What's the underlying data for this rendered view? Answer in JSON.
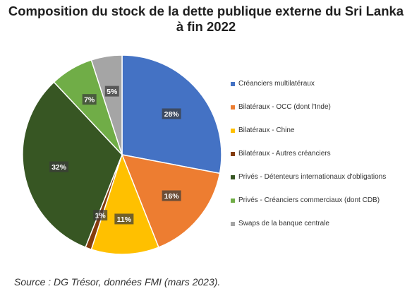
{
  "page": {
    "title_line1": "Composition du stock de la dette publique externe du Sri Lanka",
    "title_line2": "à fin 2022",
    "source": "Source : DG Trésor, données FMI (mars 2023)."
  },
  "chart_data": {
    "type": "pie",
    "title": "Composition du stock de la dette publique externe du Sri Lanka à fin 2022",
    "value_unit": "%",
    "legend_position": "right",
    "start_angle_deg": 0,
    "direction": "clockwise",
    "slices": [
      {
        "label": "Créanciers multilatéraux",
        "value": 28,
        "display": "28%",
        "color": "#4472c4"
      },
      {
        "label": "Bilatéraux - OCC (dont l'Inde)",
        "value": 16,
        "display": "16%",
        "color": "#ed7d31"
      },
      {
        "label": "Bilatéraux - Chine",
        "value": 11,
        "display": "11%",
        "color": "#ffc000"
      },
      {
        "label": "Bilatéraux - Autres créanciers",
        "value": 1,
        "display": "1%",
        "color": "#843c0c"
      },
      {
        "label": "Privés - Détenteurs internationaux d'obligations",
        "value": 32,
        "display": "32%",
        "color": "#375623"
      },
      {
        "label": "Privés - Créanciers commerciaux (dont CDB)",
        "value": 7,
        "display": "7%",
        "color": "#70ad47"
      },
      {
        "label": "Swaps de la banque centrale",
        "value": 5,
        "display": "5%",
        "color": "#a5a5a5"
      }
    ]
  }
}
